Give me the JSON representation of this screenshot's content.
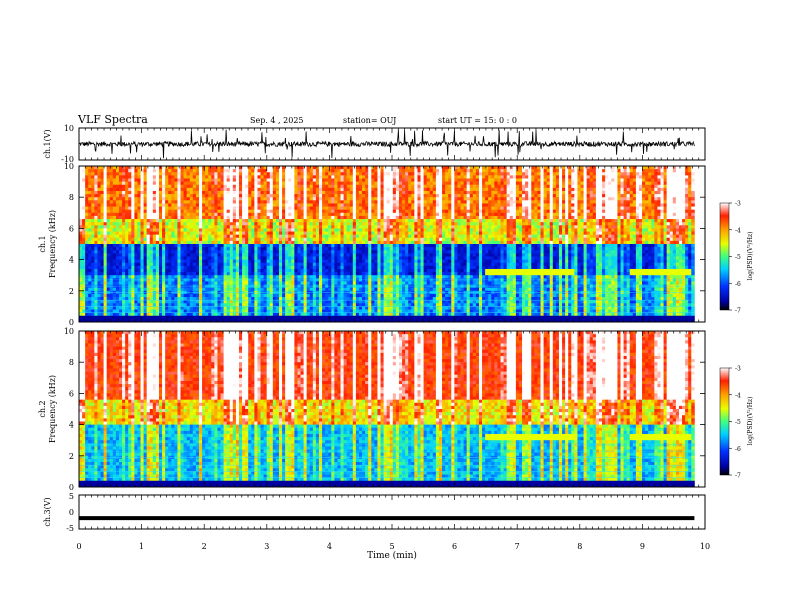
{
  "header": {
    "title": "VLF Spectra",
    "date": "Sep. 4 , 2025",
    "station": "station= OUJ",
    "start": "start UT = 15: 0 : 0"
  },
  "chart_data": [
    {
      "type": "line",
      "name": "ch1-waveform",
      "ylabel": "ch.1(V)",
      "ylim": [
        -10,
        10
      ],
      "yticks": [
        "10",
        "-10"
      ],
      "xlim": [
        0,
        9.83
      ],
      "description_values": {
        "baseline": 0,
        "noise_amplitude": 1.5,
        "spike_max": 9,
        "spike_min": -9
      }
    },
    {
      "type": "heatmap",
      "name": "ch1-spectrogram",
      "ylabel": "ch.1",
      "ylabel2": "Frequency (kHz)",
      "ylim": [
        0,
        10
      ],
      "yticks": [
        "0",
        "2",
        "4",
        "6",
        "8",
        "10"
      ],
      "xlim": [
        0,
        9.83
      ],
      "colorbar": {
        "label": "log(PSD)(V²/Hz)",
        "range": [
          -7,
          -3
        ],
        "ticks": [
          "-3",
          "-4",
          "-5",
          "-6",
          "-7"
        ]
      },
      "features": {
        "dark_band_khz": [
          3.0,
          4.5
        ],
        "tone_khz": 3.2,
        "tone_min": [
          [
            6.5,
            7.9
          ],
          [
            8.8,
            9.8
          ]
        ]
      }
    },
    {
      "type": "heatmap",
      "name": "ch2-spectrogram",
      "ylabel": "ch.2",
      "ylabel2": "Frequency (kHz)",
      "ylim": [
        0,
        10
      ],
      "yticks": [
        "0",
        "2",
        "4",
        "6",
        "8",
        "10"
      ],
      "xlim": [
        0,
        9.83
      ],
      "colorbar": {
        "label": "log(PSD)(V²/Hz)",
        "range": [
          -7,
          -3
        ],
        "ticks": [
          "-3",
          "-4",
          "-5",
          "-6",
          "-7"
        ]
      },
      "features": {
        "tone_khz": 3.2,
        "tone_min": [
          [
            6.5,
            7.9
          ],
          [
            8.8,
            9.8
          ]
        ]
      }
    },
    {
      "type": "line",
      "name": "ch3-waveform",
      "ylabel": "ch.3(V)",
      "ylim": [
        -5,
        5
      ],
      "yticks": [
        "5",
        "0",
        "-5"
      ],
      "x": [
        0,
        9.83
      ],
      "y": [
        -1.8,
        -1.8
      ]
    }
  ],
  "xaxis": {
    "label": "Time (min)",
    "range": [
      0,
      10
    ],
    "ticks": [
      "0",
      "1",
      "2",
      "3",
      "4",
      "5",
      "6",
      "7",
      "8",
      "9",
      "10"
    ]
  },
  "colors": {
    "axis": "#000000",
    "background": "#ffffff"
  }
}
